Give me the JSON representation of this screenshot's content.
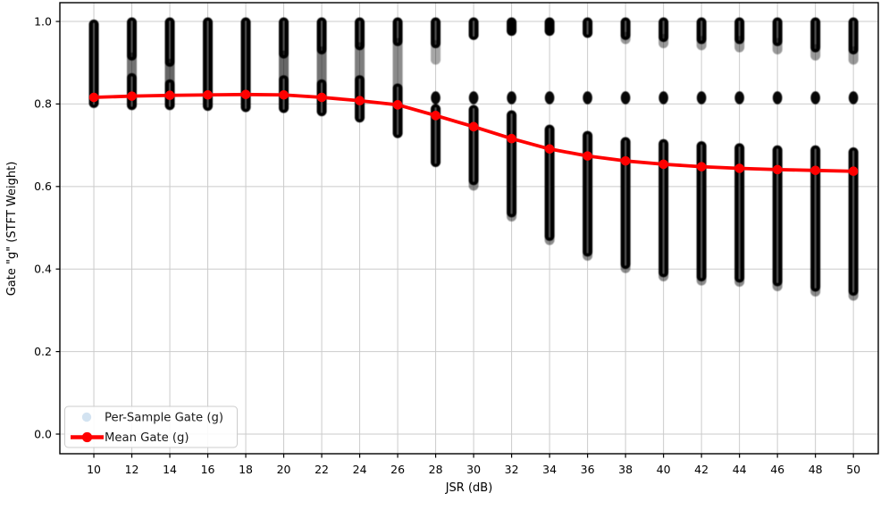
{
  "chart_data": {
    "type": "scatter",
    "title": "",
    "xlabel": "JSR (dB)",
    "ylabel": "Gate \"g\" (STFT Weight)",
    "grid": true,
    "xlim": [
      8.21,
      51.31
    ],
    "ylim": [
      -0.0476,
      1.0455
    ],
    "xticks": [
      10,
      12,
      14,
      16,
      18,
      20,
      22,
      24,
      26,
      28,
      30,
      32,
      34,
      36,
      38,
      40,
      42,
      44,
      46,
      48,
      50
    ],
    "xtick_labels": [
      "10",
      "12",
      "14",
      "16",
      "18",
      "20",
      "22",
      "24",
      "26",
      "28",
      "30",
      "32",
      "34",
      "36",
      "38",
      "40",
      "42",
      "44",
      "46",
      "48",
      "50"
    ],
    "yticks": [
      0.0,
      0.2,
      0.4,
      0.6,
      0.8,
      1.0
    ],
    "ytick_labels": [
      "0.0",
      "0.2",
      "0.4",
      "0.6",
      "0.8",
      "1.0"
    ],
    "colors": {
      "per_sample": "#1f77b4",
      "mean_line": "#ff0000",
      "grid": "#cbcbcb",
      "spine": "#000000",
      "legend_border": "#cccccc",
      "legend_sample_marker": "#d3e3f1"
    },
    "legend": {
      "position": "lower left",
      "items": [
        {
          "label": "Per-Sample Gate (g)",
          "marker": "circle"
        },
        {
          "label": "Mean Gate (g)",
          "marker": "line+circle"
        }
      ]
    },
    "series": [
      {
        "name": "Per-Sample Gate (g)",
        "kind": "strip-scatter",
        "note": "thousands of semi-transparent per-sample points; encoded as dense value ranges [lo, hi, density] per JSR plus an isolated cluster dot",
        "columns": [
          {
            "x": 10,
            "dot": null,
            "segments": [
              [
                0.8,
                0.995,
                1
              ]
            ]
          },
          {
            "x": 12,
            "dot": null,
            "segments": [
              [
                0.915,
                1.0,
                1
              ],
              [
                0.865,
                0.915,
                0.55
              ],
              [
                0.795,
                0.865,
                1
              ]
            ]
          },
          {
            "x": 14,
            "dot": null,
            "segments": [
              [
                0.9,
                1.0,
                1
              ],
              [
                0.85,
                0.9,
                0.6
              ],
              [
                0.795,
                0.85,
                1
              ]
            ]
          },
          {
            "x": 16,
            "dot": null,
            "segments": [
              [
                0.793,
                1.0,
                1
              ]
            ]
          },
          {
            "x": 18,
            "dot": null,
            "segments": [
              [
                0.79,
                1.0,
                1
              ]
            ]
          },
          {
            "x": 20,
            "dot": null,
            "segments": [
              [
                0.92,
                1.0,
                1
              ],
              [
                0.86,
                0.92,
                0.6
              ],
              [
                0.788,
                0.86,
                1
              ]
            ]
          },
          {
            "x": 22,
            "dot": null,
            "segments": [
              [
                0.93,
                1.0,
                1
              ],
              [
                0.85,
                0.93,
                0.55
              ],
              [
                0.78,
                0.85,
                1
              ]
            ]
          },
          {
            "x": 24,
            "dot": null,
            "segments": [
              [
                0.94,
                1.0,
                1
              ],
              [
                0.86,
                0.94,
                0.5
              ],
              [
                0.765,
                0.86,
                1
              ]
            ]
          },
          {
            "x": 26,
            "dot": null,
            "segments": [
              [
                0.95,
                1.0,
                1
              ],
              [
                0.84,
                0.95,
                0.45
              ],
              [
                0.727,
                0.84,
                1
              ]
            ]
          },
          {
            "x": 28,
            "dot": 0.815,
            "segments": [
              [
                0.945,
                1.0,
                1
              ],
              [
                0.905,
                0.945,
                0.35
              ],
              [
                0.657,
                0.79,
                1
              ]
            ]
          },
          {
            "x": 30,
            "dot": 0.815,
            "segments": [
              [
                0.965,
                1.0,
                1
              ],
              [
                0.6,
                0.613,
                0.45
              ],
              [
                0.613,
                0.788,
                1
              ]
            ]
          },
          {
            "x": 32,
            "dot": 0.815,
            "segments": [
              [
                0.975,
                1.0,
                1
              ],
              [
                0.525,
                0.535,
                0.45
              ],
              [
                0.535,
                0.775,
                1
              ]
            ]
          },
          {
            "x": 34,
            "dot": 0.815,
            "segments": [
              [
                0.975,
                1.0,
                1
              ],
              [
                0.468,
                0.478,
                0.45
              ],
              [
                0.478,
                0.74,
                1
              ]
            ]
          },
          {
            "x": 36,
            "dot": 0.815,
            "segments": [
              [
                0.97,
                1.0,
                1
              ],
              [
                0.43,
                0.44,
                0.45
              ],
              [
                0.44,
                0.725,
                1
              ]
            ]
          },
          {
            "x": 38,
            "dot": 0.815,
            "segments": [
              [
                0.965,
                1.0,
                1
              ],
              [
                0.955,
                0.965,
                0.4
              ],
              [
                0.4,
                0.41,
                0.45
              ],
              [
                0.41,
                0.71,
                1
              ]
            ]
          },
          {
            "x": 40,
            "dot": 0.815,
            "segments": [
              [
                0.96,
                1.0,
                1
              ],
              [
                0.945,
                0.96,
                0.4
              ],
              [
                0.38,
                0.39,
                0.45
              ],
              [
                0.39,
                0.705,
                1
              ]
            ]
          },
          {
            "x": 42,
            "dot": 0.815,
            "segments": [
              [
                0.955,
                1.0,
                1
              ],
              [
                0.94,
                0.955,
                0.4
              ],
              [
                0.37,
                0.38,
                0.45
              ],
              [
                0.38,
                0.7,
                1
              ]
            ]
          },
          {
            "x": 44,
            "dot": 0.815,
            "segments": [
              [
                0.955,
                1.0,
                1
              ],
              [
                0.935,
                0.955,
                0.4
              ],
              [
                0.367,
                0.377,
                0.45
              ],
              [
                0.377,
                0.695,
                1
              ]
            ]
          },
          {
            "x": 46,
            "dot": 0.815,
            "segments": [
              [
                0.95,
                1.0,
                1
              ],
              [
                0.93,
                0.95,
                0.4
              ],
              [
                0.356,
                0.368,
                0.45
              ],
              [
                0.368,
                0.69,
                1
              ]
            ]
          },
          {
            "x": 48,
            "dot": 0.815,
            "segments": [
              [
                0.935,
                1.0,
                1
              ],
              [
                0.915,
                0.935,
                0.4
              ],
              [
                0.343,
                0.355,
                0.45
              ],
              [
                0.355,
                0.69,
                1
              ]
            ]
          },
          {
            "x": 50,
            "dot": 0.815,
            "segments": [
              [
                0.93,
                1.0,
                1
              ],
              [
                0.905,
                0.93,
                0.4
              ],
              [
                0.333,
                0.345,
                0.45
              ],
              [
                0.345,
                0.685,
                1
              ]
            ]
          }
        ]
      },
      {
        "name": "Mean Gate (g)",
        "kind": "line",
        "x": [
          10,
          12,
          14,
          16,
          18,
          20,
          22,
          24,
          26,
          28,
          30,
          32,
          34,
          36,
          38,
          40,
          42,
          44,
          46,
          48,
          50
        ],
        "y": [
          0.816,
          0.819,
          0.821,
          0.822,
          0.823,
          0.822,
          0.816,
          0.808,
          0.798,
          0.772,
          0.745,
          0.716,
          0.691,
          0.674,
          0.662,
          0.654,
          0.648,
          0.644,
          0.641,
          0.639,
          0.637
        ]
      }
    ]
  }
}
